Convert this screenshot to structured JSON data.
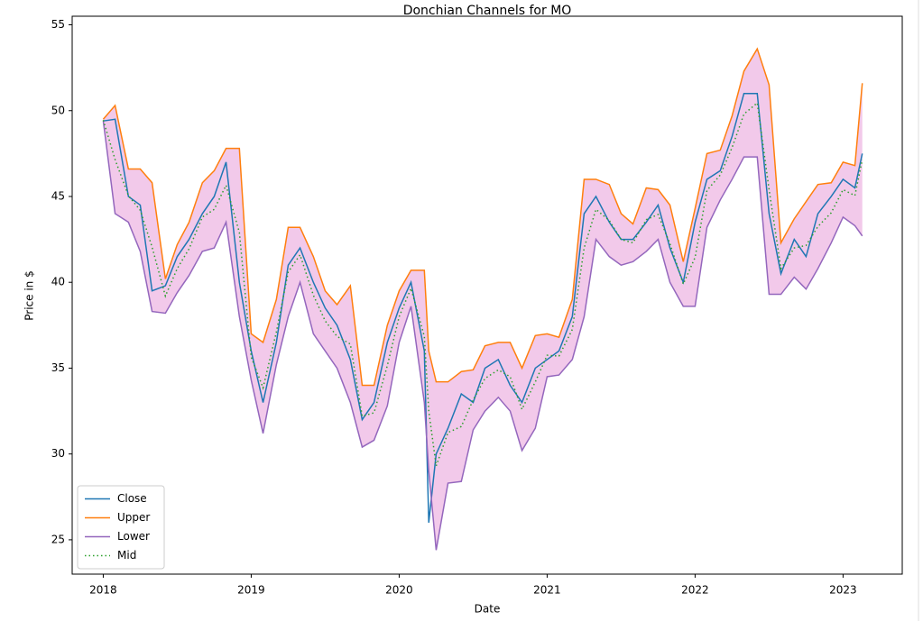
{
  "chart_data": {
    "type": "line",
    "title": "Donchian Channels for MO",
    "x_label": "Date",
    "y_label": "Price in $",
    "x": [
      2018.0,
      2018.08,
      2018.17,
      2018.25,
      2018.33,
      2018.42,
      2018.5,
      2018.58,
      2018.67,
      2018.75,
      2018.83,
      2018.92,
      2019.0,
      2019.08,
      2019.17,
      2019.25,
      2019.33,
      2019.42,
      2019.5,
      2019.58,
      2019.67,
      2019.75,
      2019.83,
      2019.92,
      2020.0,
      2020.08,
      2020.17,
      2020.2,
      2020.25,
      2020.33,
      2020.42,
      2020.5,
      2020.58,
      2020.67,
      2020.75,
      2020.83,
      2020.92,
      2021.0,
      2021.08,
      2021.17,
      2021.25,
      2021.33,
      2021.42,
      2021.5,
      2021.58,
      2021.67,
      2021.75,
      2021.83,
      2021.92,
      2022.0,
      2022.08,
      2022.17,
      2022.25,
      2022.33,
      2022.42,
      2022.5,
      2022.58,
      2022.67,
      2022.75,
      2022.83,
      2022.92,
      2023.0,
      2023.08,
      2023.13
    ],
    "series": [
      {
        "name": "Close",
        "color": "#1f77b4",
        "style": "solid",
        "values": [
          49.4,
          49.5,
          45,
          44.5,
          39.5,
          39.8,
          41.5,
          42.5,
          44,
          45,
          47,
          40,
          36,
          33,
          36.5,
          41,
          42,
          40,
          38.5,
          37.5,
          35.5,
          32,
          33,
          36.5,
          38.5,
          40,
          36,
          26,
          30,
          31.5,
          33.5,
          33,
          35,
          35.5,
          34,
          33,
          35,
          35.5,
          36,
          38,
          44,
          45,
          43.5,
          42.5,
          42.5,
          43.5,
          44.5,
          42,
          40,
          43.5,
          46,
          46.5,
          48.5,
          51,
          51,
          44,
          40.5,
          42.5,
          41.5,
          44,
          45,
          46,
          45.5,
          47.5
        ]
      },
      {
        "name": "Upper",
        "color": "#ff7f0e",
        "style": "solid",
        "values": [
          49.5,
          50.3,
          46.6,
          46.6,
          45.8,
          40.2,
          42.2,
          43.5,
          45.8,
          46.5,
          47.8,
          47.8,
          37,
          36.5,
          39,
          43.2,
          43.2,
          41.5,
          39.5,
          38.7,
          39.8,
          34,
          34,
          37.5,
          39.5,
          40.7,
          40.7,
          36,
          34.2,
          34.2,
          34.8,
          34.9,
          36.3,
          36.5,
          36.5,
          35,
          36.9,
          37,
          36.8,
          39,
          46,
          46,
          45.7,
          44,
          43.4,
          45.5,
          45.4,
          44.5,
          41.2,
          44.3,
          47.5,
          47.7,
          49.7,
          52.3,
          53.6,
          51.5,
          42.3,
          43.7,
          44.7,
          45.7,
          45.8,
          47,
          46.8,
          51.6
        ]
      },
      {
        "name": "Lower",
        "color": "#9467bd",
        "style": "solid",
        "values": [
          49.4,
          44,
          43.5,
          41.8,
          38.3,
          38.2,
          39.4,
          40.4,
          41.8,
          42,
          43.5,
          38,
          34.3,
          31.2,
          35.2,
          38,
          40,
          37,
          36,
          35,
          33,
          30.4,
          30.8,
          32.8,
          36.5,
          38.6,
          33,
          29,
          24.4,
          28.3,
          28.4,
          31.4,
          32.5,
          33.3,
          32.5,
          30.2,
          31.5,
          34.5,
          34.6,
          35.5,
          38,
          42.5,
          41.5,
          41,
          41.2,
          41.8,
          42.5,
          40,
          38.6,
          38.6,
          43.2,
          44.8,
          46,
          47.3,
          47.3,
          39.3,
          39.3,
          40.3,
          39.6,
          40.8,
          42.3,
          43.8,
          43.3,
          42.7
        ]
      },
      {
        "name": "Mid",
        "color": "#2ca02c",
        "style": "dotted",
        "values": [
          49.45,
          47.15,
          45.05,
          44.2,
          42.05,
          39.2,
          40.8,
          41.95,
          43.8,
          44.25,
          45.65,
          42.9,
          35.65,
          33.85,
          37.1,
          40.6,
          41.6,
          39.25,
          37.75,
          36.85,
          36.4,
          32.2,
          32.4,
          35.15,
          38,
          39.65,
          36.85,
          32.5,
          29.3,
          31.25,
          31.6,
          33.15,
          34.4,
          34.9,
          34.5,
          32.6,
          34.2,
          35.75,
          35.7,
          37.25,
          42,
          44.25,
          43.6,
          42.5,
          42.3,
          43.65,
          43.95,
          42.25,
          39.9,
          41.45,
          45.35,
          46.25,
          47.85,
          49.8,
          50.45,
          45.4,
          40.8,
          42,
          42.15,
          43.25,
          44.05,
          45.4,
          45.05,
          47.15
        ]
      }
    ],
    "fill_color": "#f2c9ea",
    "xlim": [
      2017.79,
      2023.4
    ],
    "xticks": [
      2018,
      2019,
      2020,
      2021,
      2022,
      2023
    ],
    "ylim": [
      23.0,
      55.5
    ],
    "yticks": [
      25,
      30,
      35,
      40,
      45,
      50,
      55
    ],
    "grid": false,
    "legend": "lower left"
  }
}
